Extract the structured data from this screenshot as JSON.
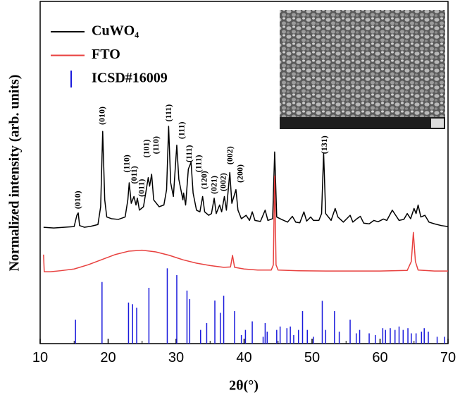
{
  "chart_data": {
    "type": "line",
    "xlabel": "2θ(°)",
    "ylabel": "Normalized intensity (arb. units)",
    "xlim": [
      10,
      70
    ],
    "xticks": [
      10,
      20,
      30,
      40,
      50,
      60,
      70
    ],
    "ylim": [
      0,
      100
    ],
    "legend": "upper left",
    "series": [
      {
        "name": "CuWO₄",
        "color": "#000000",
        "style": "line",
        "x": [
          10.5,
          12,
          13.5,
          15,
          15.4,
          15.6,
          15.8,
          16.5,
          17.5,
          18.5,
          18.9,
          19.2,
          19.5,
          19.8,
          20.5,
          21.5,
          22.5,
          22.9,
          23.1,
          23.4,
          23.8,
          24.1,
          24.3,
          24.6,
          25.2,
          25.9,
          26.1,
          26.4,
          26.7,
          27.5,
          28.2,
          28.6,
          28.9,
          29.2,
          29.6,
          30.1,
          30.4,
          31,
          31.1,
          31.4,
          31.8,
          32.2,
          32.5,
          33,
          33.5,
          33.9,
          34.2,
          34.8,
          35.2,
          35.6,
          35.9,
          36.4,
          36.7,
          37.1,
          37.4,
          37.9,
          38.2,
          38.8,
          39.1,
          39.6,
          40.3,
          40.8,
          41.2,
          41.6,
          42.4,
          43.1,
          43.5,
          44.2,
          44.5,
          44.8,
          45.5,
          46.4,
          47.1,
          47.6,
          48.2,
          48.8,
          49.2,
          49.8,
          50.2,
          51,
          51.4,
          51.7,
          52,
          52.8,
          53.4,
          53.8,
          54.6,
          55.1,
          55.6,
          56,
          56.6,
          57.1,
          57.6,
          58.4,
          59.1,
          59.7,
          60.5,
          61,
          61.8,
          62.3,
          62.8,
          63.5,
          64,
          64.5,
          65,
          65.3,
          65.6,
          66,
          66.6,
          67.2,
          68,
          69,
          70
        ],
        "values": [
          34,
          33.8,
          34,
          34.2,
          37.5,
          38.2,
          34.5,
          34,
          34.3,
          34.8,
          40,
          62,
          42,
          37,
          36.5,
          36.3,
          37,
          42,
          47,
          41,
          43,
          40.5,
          42.5,
          39,
          40,
          48.5,
          46,
          49.5,
          42,
          40,
          40.5,
          45,
          63.5,
          47,
          43,
          58,
          48,
          42,
          44,
          40.5,
          51,
          53,
          44,
          39,
          38.5,
          43,
          38.5,
          37.5,
          38,
          42.5,
          38,
          40.5,
          38.5,
          43,
          39,
          50,
          41,
          45,
          39,
          36.5,
          37.5,
          36,
          38.5,
          36,
          35.7,
          39,
          36,
          36.5,
          56,
          37,
          36.3,
          35.5,
          37.2,
          35.5,
          35.3,
          38.5,
          35.8,
          37,
          36,
          36,
          38,
          55.7,
          38,
          36,
          39.5,
          37,
          35.5,
          36.5,
          37.5,
          35.5,
          36.5,
          37.2,
          35.2,
          35,
          36,
          35.6,
          36.4,
          36,
          39,
          37.5,
          36,
          36.3,
          38,
          36.5,
          39.5,
          38,
          40.5,
          37,
          37.5,
          35.5,
          35,
          34.5,
          34.2
        ]
      },
      {
        "name": "FTO",
        "color": "#e8413f",
        "style": "line",
        "x": [
          10.5,
          10.6,
          11.5,
          13,
          15,
          17,
          19,
          21,
          23,
          25,
          27,
          29,
          31,
          33,
          35,
          37,
          38,
          38.3,
          38.6,
          40,
          42,
          44,
          44.3,
          44.5,
          44.7,
          45,
          48,
          52,
          56,
          60,
          64,
          64.6,
          64.9,
          65.2,
          65.6,
          68,
          70
        ],
        "values": [
          26,
          21,
          21,
          21.3,
          21.8,
          23,
          24.5,
          26,
          27,
          27.3,
          26.8,
          25.8,
          24.5,
          23.5,
          22.8,
          22.3,
          22.4,
          25.8,
          22.3,
          21.8,
          21.5,
          21.5,
          23,
          49,
          23,
          21.5,
          21.3,
          21.2,
          21.2,
          21.2,
          21.4,
          24,
          32.5,
          24,
          21.5,
          21.2,
          21.2
        ]
      },
      {
        "name": "ICSD#16009",
        "color": "#1a1adc",
        "style": "stick",
        "x": [
          15.2,
          19.1,
          23,
          23.6,
          24.2,
          26,
          28.7,
          30.1,
          31.6,
          32,
          33.6,
          34.5,
          35.7,
          36.5,
          37,
          38.6,
          39.6,
          40.2,
          41.2,
          42.8,
          43.1,
          43.4,
          44.8,
          45.3,
          46.3,
          46.8,
          47.3,
          48,
          48.6,
          49.3,
          50.2,
          51.5,
          52,
          53.3,
          54,
          55.6,
          56.5,
          57,
          58.4,
          59.3,
          60.4,
          60.8,
          61.5,
          62.2,
          62.8,
          63.4,
          64.1,
          64.6,
          65.3,
          66.1,
          66.5,
          67.1,
          68.4,
          69.5
        ],
        "values": [
          7,
          18,
          12,
          11.5,
          10.5,
          16.3,
          22,
          20,
          15.5,
          13,
          4,
          6,
          12.6,
          9,
          14,
          9.5,
          2.5,
          4,
          6.5,
          2,
          6,
          3.5,
          4,
          5,
          4.5,
          5,
          2.5,
          4,
          9.5,
          4,
          2,
          12.5,
          4,
          9.5,
          3.5,
          7,
          3,
          4,
          3,
          2.5,
          4.5,
          4,
          4.5,
          4,
          5,
          4,
          4.5,
          3,
          3,
          3.5,
          4.5,
          3.5,
          2,
          2
        ]
      }
    ],
    "annotations": [
      {
        "text": "(010)",
        "x": 15.6,
        "y": 42
      },
      {
        "text": "(010)",
        "x": 19.2,
        "y": 66.6
      },
      {
        "text": "(110)",
        "x": 22.8,
        "y": 52.6
      },
      {
        "text": "(011)",
        "x": 23.9,
        "y": 49.3
      },
      {
        "text": "(011)",
        "x": 25.0,
        "y": 45.5
      },
      {
        "text": "(101)",
        "x": 25.7,
        "y": 57
      },
      {
        "text": "(110)",
        "x": 27.1,
        "y": 58
      },
      {
        "text": "(111)",
        "x": 29.0,
        "y": 67.4
      },
      {
        "text": "(111)",
        "x": 30.9,
        "y": 62.3
      },
      {
        "text": "(111)",
        "x": 32.0,
        "y": 55.5
      },
      {
        "text": "(111)",
        "x": 33.4,
        "y": 52.6
      },
      {
        "text": "(120)",
        "x": 34.2,
        "y": 47.8
      },
      {
        "text": "(021)",
        "x": 35.7,
        "y": 46.4
      },
      {
        "text": "(002)",
        "x": 37.0,
        "y": 47.2
      },
      {
        "text": "(002)",
        "x": 38.0,
        "y": 55
      },
      {
        "text": "(200)",
        "x": 39.5,
        "y": 49.7
      },
      {
        "text": "(131)",
        "x": 51.9,
        "y": 58.1
      }
    ]
  }
}
